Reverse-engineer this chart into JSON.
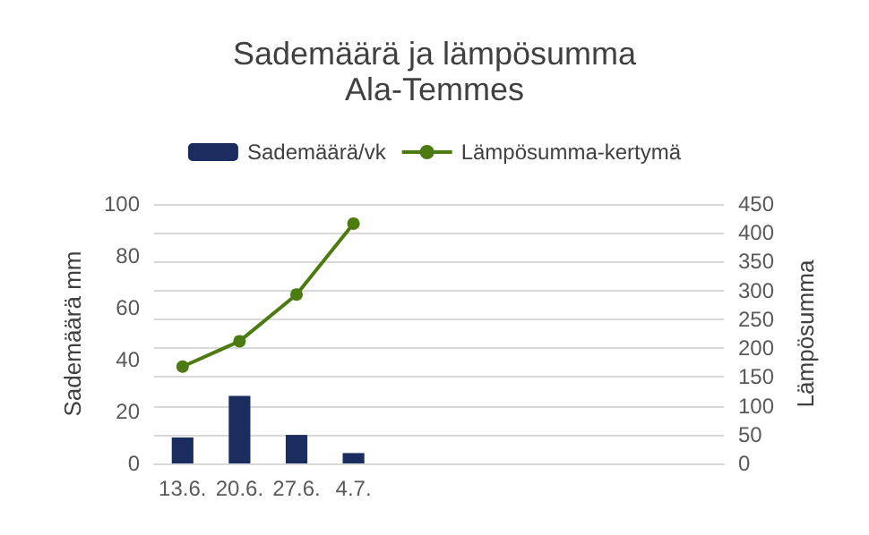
{
  "chart_data": {
    "type": "bar",
    "title": "Sademäärä ja lämpösumma",
    "subtitle": "Ala-Temmes",
    "ylabel": "Sademäärä mm",
    "y2label": "Lämpösumma",
    "categories": [
      "13.6.",
      "20.6.",
      "27.6.",
      "4.7.",
      null,
      null,
      null,
      null,
      null,
      null
    ],
    "series": [
      {
        "name": "Sademäärä/vk",
        "color": "#1b2c5f",
        "values": [
          10,
          26,
          11,
          4,
          null,
          null,
          null,
          null,
          null,
          null
        ]
      },
      {
        "name": "Lämpösumma-kertymä",
        "type": "line",
        "axis": "y2",
        "color": "#4e7a12",
        "marker": "circle",
        "values": [
          168,
          212,
          293,
          416,
          null,
          null,
          null,
          null,
          null,
          null
        ]
      }
    ],
    "ylim": [
      0,
      100
    ],
    "yticks": [
      0,
      20,
      40,
      60,
      80,
      100
    ],
    "y2lim": [
      0,
      450
    ],
    "y2ticks": [
      0,
      50,
      100,
      150,
      200,
      250,
      300,
      350,
      400,
      450
    ],
    "grid": true,
    "legend": "top"
  }
}
